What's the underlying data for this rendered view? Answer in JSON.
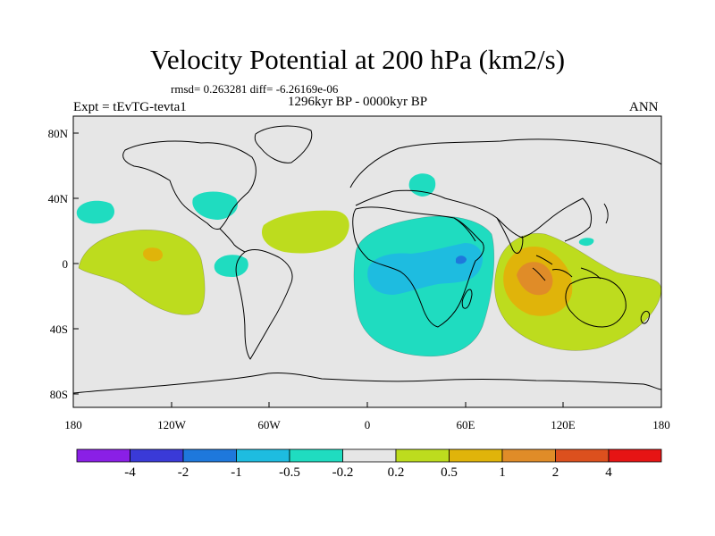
{
  "title": "Velocity Potential at 200 hPa (km2/s)",
  "stats": "rmsd= 0.263281 diff= -6.26169e-06",
  "experiment": "Expt = tEvTG-tevta1",
  "period": "1296kyr BP - 0000kyr BP",
  "season": "ANN",
  "colors": {
    "background": "#e6e6e6",
    "coast": "#000000",
    "levels": [
      "#8a1fe6",
      "#3a3ad8",
      "#1e78dc",
      "#1ebce0",
      "#1fdcc0",
      "#e6e6e6",
      "#bddc1e",
      "#e0b40a",
      "#e08c28",
      "#dc501e",
      "#e61414"
    ]
  },
  "axes": {
    "lon_ticks": [
      "180",
      "120W",
      "60W",
      "0",
      "60E",
      "120E",
      "180"
    ],
    "lat_ticks": [
      "80N",
      "40N",
      "0",
      "40S",
      "80S"
    ]
  },
  "colorbar": {
    "labels": [
      "-4",
      "-2",
      "-1",
      "-0.5",
      "-0.2",
      "0.2",
      "0.5",
      "1",
      "2",
      "4"
    ]
  }
}
